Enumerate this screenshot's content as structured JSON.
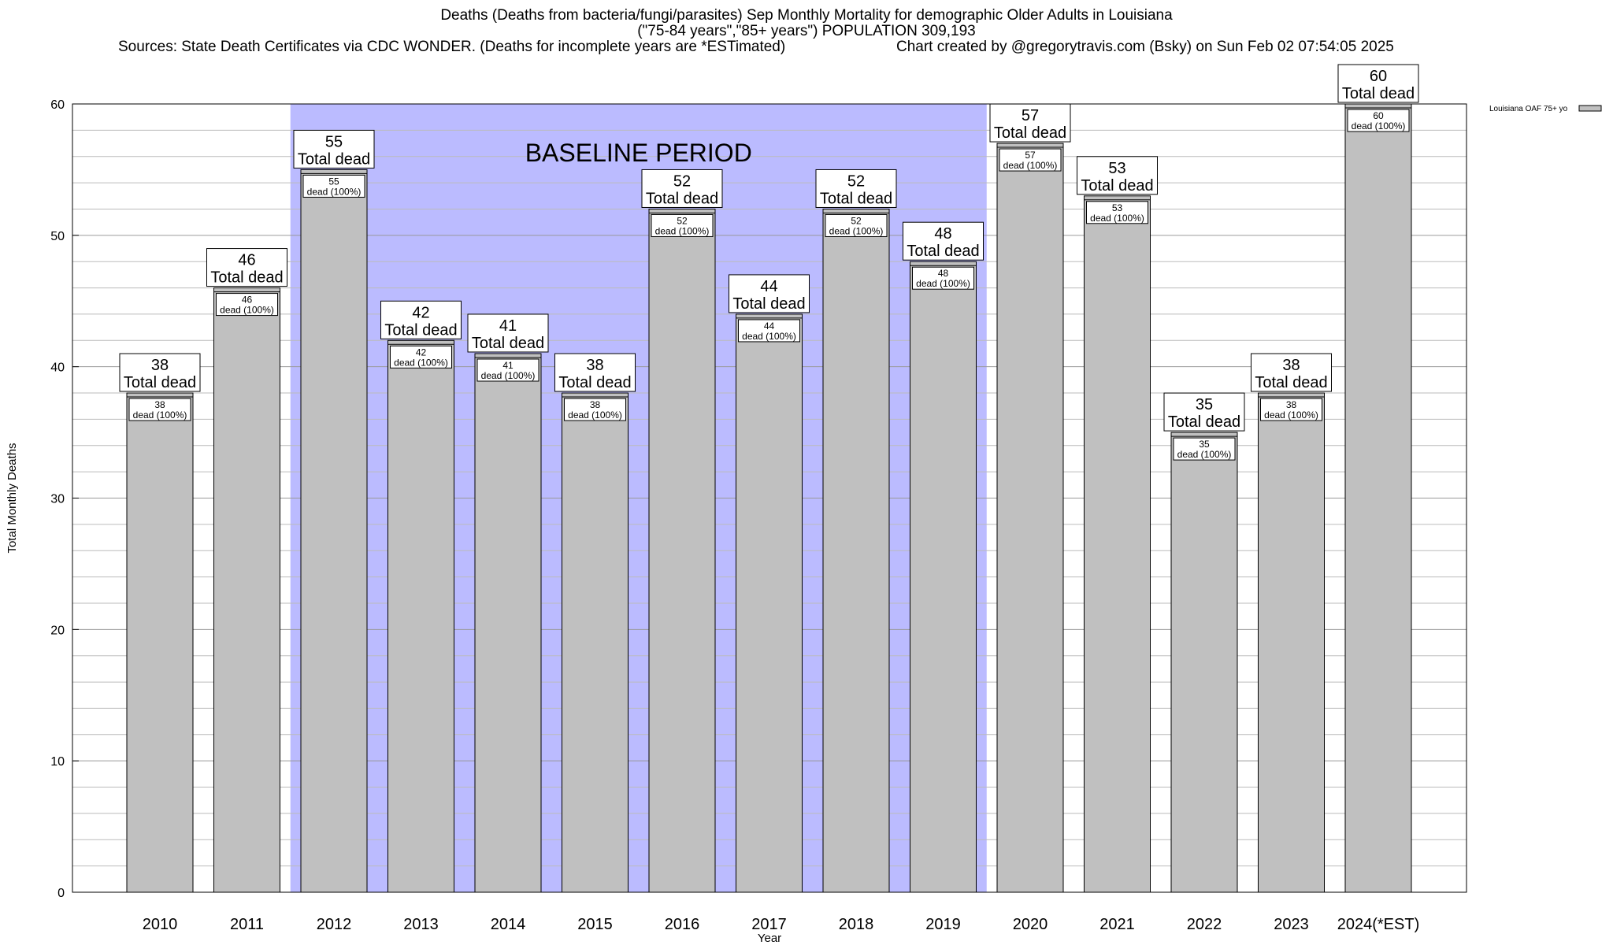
{
  "title": {
    "line1": "Deaths (Deaths from bacteria/fungi/parasites) Sep Monthly Mortality for demographic Older Adults in Louisiana",
    "line2": "(\"75-84 years\",\"85+ years\") POPULATION 309,193",
    "sources": "Sources: State Death Certificates via CDC WONDER. (Deaths for incomplete years are *ESTimated)",
    "credit": "Chart created by @gregorytravis.com (Bsky) on Sun Feb 02 07:54:05 2025"
  },
  "chart_data": {
    "type": "bar",
    "xlabel": "Year",
    "ylabel": "Total Monthly Deaths",
    "ylim": [
      0,
      60
    ],
    "yticks": [
      0,
      10,
      20,
      30,
      40,
      50,
      60
    ],
    "categories": [
      "2010",
      "2011",
      "2012",
      "2013",
      "2014",
      "2015",
      "2016",
      "2017",
      "2018",
      "2019",
      "2020",
      "2021",
      "2022",
      "2023",
      "2024(*EST)"
    ],
    "series": [
      {
        "name": "Louisiana OAF 75+ yo",
        "values": [
          38,
          46,
          55,
          42,
          41,
          38,
          52,
          44,
          52,
          48,
          57,
          53,
          35,
          38,
          60
        ]
      }
    ],
    "total_label_suffix": "Total dead",
    "inner_label_suffix": "dead (100%)",
    "baseline": {
      "label": "BASELINE PERIOD",
      "from": "2012",
      "to": "2019"
    },
    "legend": {
      "label": "Louisiana OAF 75+ yo",
      "placement": "top-right"
    },
    "colors": {
      "bar": "#c0c0c0",
      "baseline": "#bbbbff",
      "grid": "#bbbbbb",
      "axis": "#000000"
    }
  }
}
